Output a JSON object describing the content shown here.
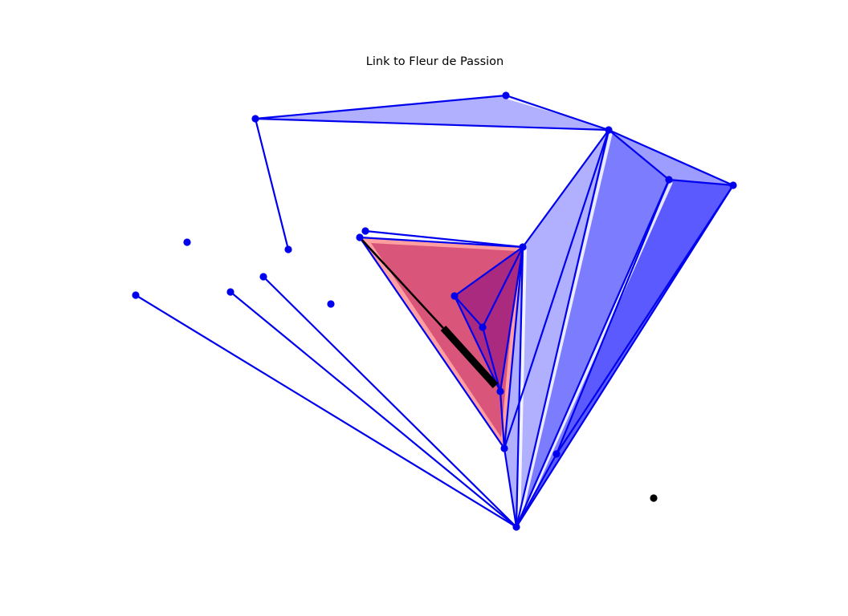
{
  "title": "Link to Fleur de Passion",
  "colors": {
    "edge": "#0000ee",
    "node": "#0000ee",
    "highlight_node": "#000000",
    "highlight_edge": "#000000",
    "face_light": "#b0b0ff",
    "face_mid": "#7c7cff",
    "face_dark": "#5a5aff",
    "face_red": "#d9557a",
    "face_purple": "#a92a7e",
    "red_halo": "#ff9f9f"
  }
}
